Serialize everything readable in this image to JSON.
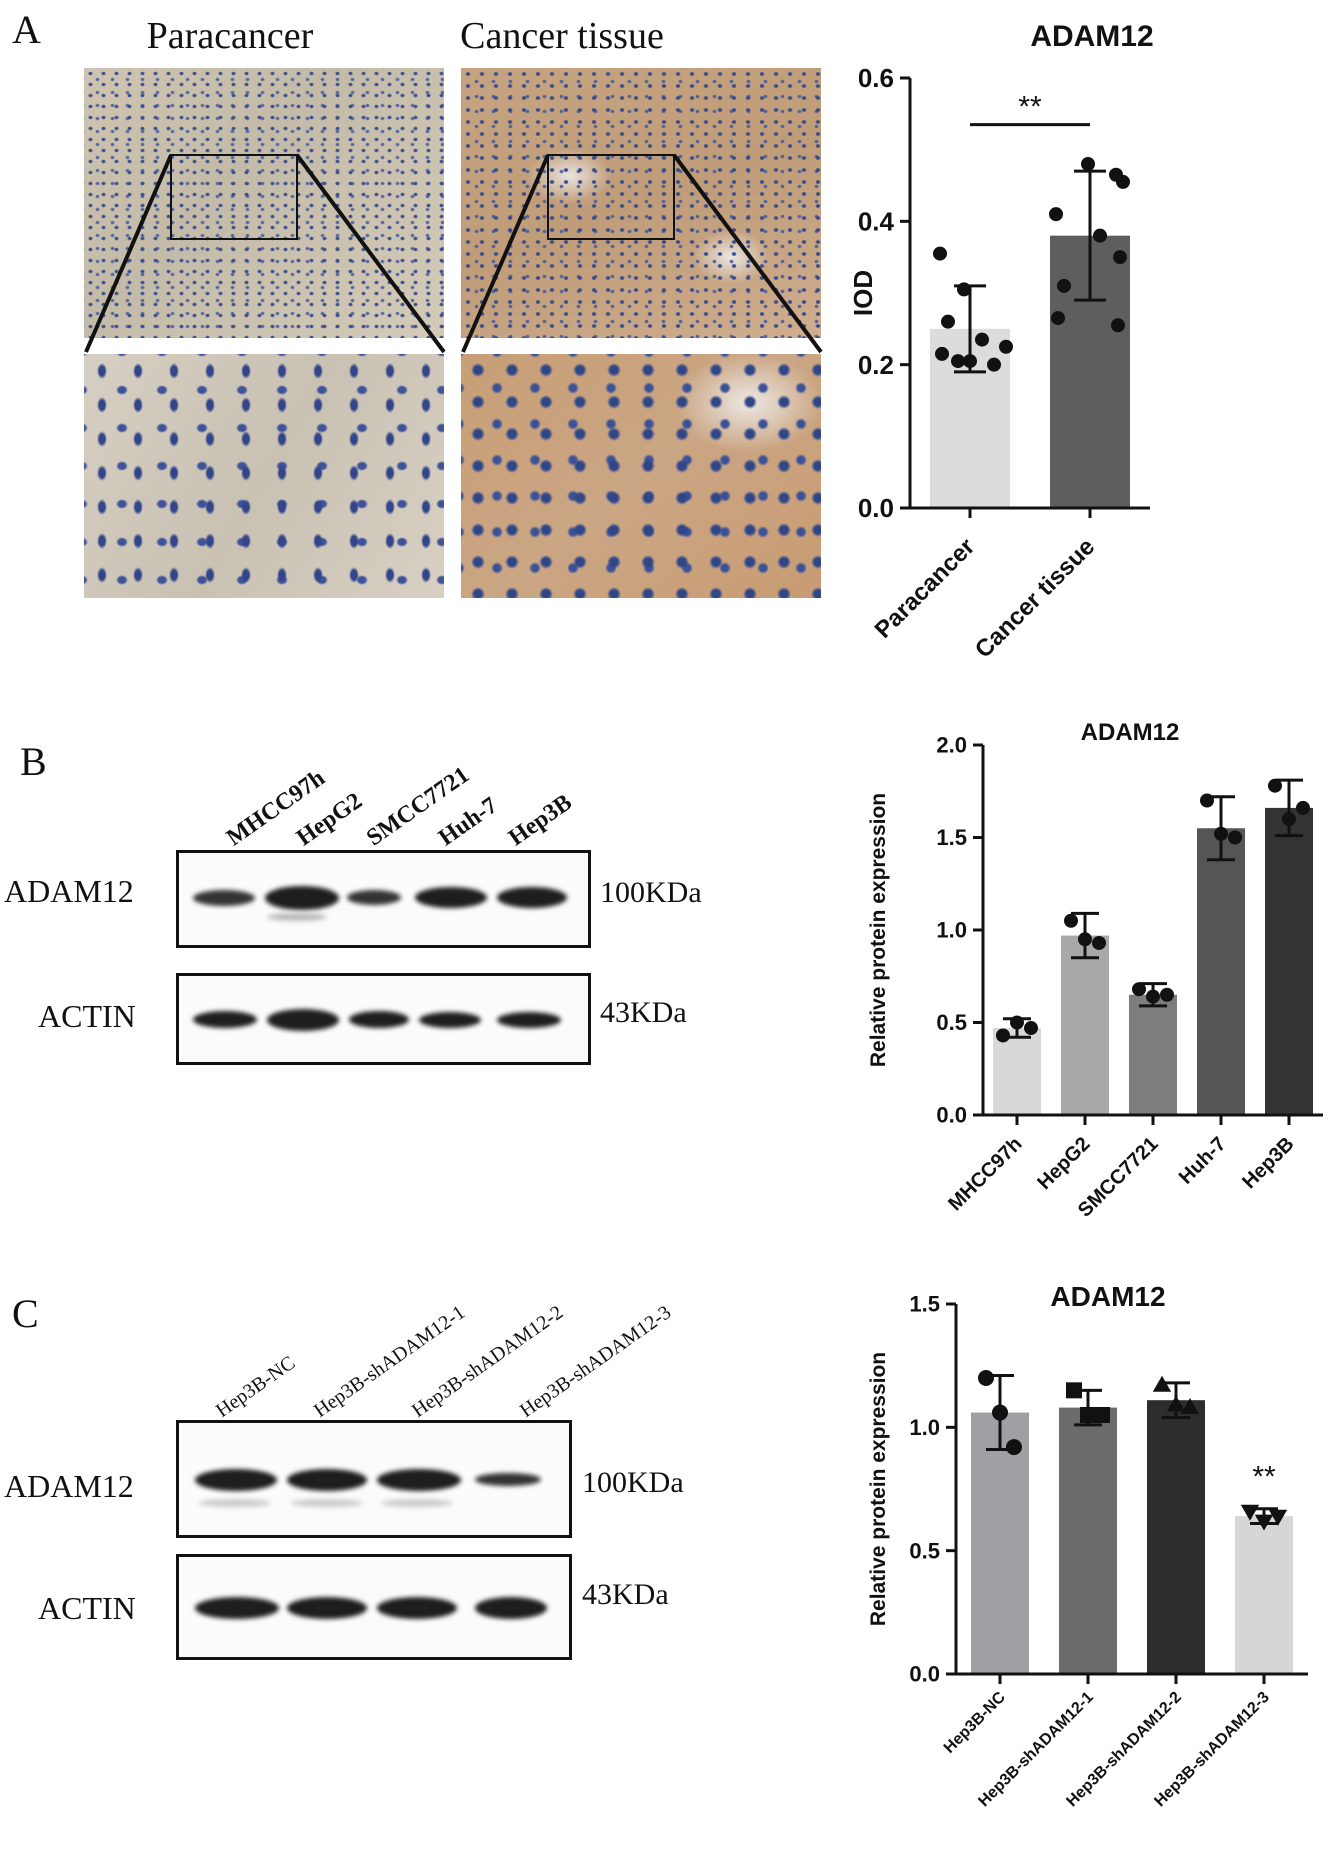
{
  "panel_a": {
    "letter": "A",
    "labels": [
      "Paracancer",
      "Cancer tissue"
    ]
  },
  "panel_b": {
    "letter": "B",
    "lanes": [
      "MHCC97h",
      "HepG2",
      "SMCC7721",
      "Huh-7",
      "Hep3B"
    ],
    "rows": [
      {
        "name": "ADAM12",
        "kda": "100KDa"
      },
      {
        "name": "ACTIN",
        "kda": "43KDa"
      }
    ]
  },
  "panel_c": {
    "letter": "C",
    "lanes": [
      "Hep3B-NC",
      "Hep3B-shADAM12-1",
      "Hep3B-shADAM12-2",
      "Hep3B-shADAM12-3"
    ],
    "rows": [
      {
        "name": "ADAM12",
        "kda": "100KDa"
      },
      {
        "name": "ACTIN",
        "kda": "43KDa"
      }
    ]
  },
  "chart_data": [
    {
      "type": "bar",
      "title": "ADAM12",
      "ylabel": "IOD",
      "categories": [
        "Paracancer",
        "Cancer tissue"
      ],
      "values": [
        0.25,
        0.38
      ],
      "errors": [
        0.06,
        0.09
      ],
      "ylim": [
        0,
        0.6
      ],
      "yticks": [
        "0.0",
        "0.2",
        "0.4",
        "0.6"
      ],
      "colors": [
        "#dcdcdc",
        "#5e5e5e"
      ],
      "points": [
        [
          0.355,
          0.305,
          0.26,
          0.235,
          0.215,
          0.205,
          0.2,
          0.205,
          0.225
        ],
        [
          0.48,
          0.465,
          0.455,
          0.41,
          0.38,
          0.35,
          0.31,
          0.265,
          0.255
        ]
      ],
      "significance": "**"
    },
    {
      "type": "bar",
      "title": "ADAM12",
      "ylabel": "Relative protein expression",
      "categories": [
        "MHCC97h",
        "HepG2",
        "SMCC7721",
        "Huh-7",
        "Hep3B"
      ],
      "values": [
        0.47,
        0.97,
        0.65,
        1.55,
        1.66
      ],
      "errors": [
        0.05,
        0.12,
        0.06,
        0.17,
        0.15
      ],
      "ylim": [
        0,
        2.0
      ],
      "yticks": [
        "0.0",
        "0.5",
        "1.0",
        "1.5",
        "2.0"
      ],
      "colors": [
        "#d8d8d8",
        "#a8a8a8",
        "#7d7d7d",
        "#555555",
        "#333333"
      ],
      "points": [
        [
          0.43,
          0.5,
          0.47
        ],
        [
          1.05,
          0.95,
          0.93
        ],
        [
          0.68,
          0.64,
          0.65
        ],
        [
          1.7,
          1.52,
          1.5
        ],
        [
          1.78,
          1.6,
          1.66
        ]
      ]
    },
    {
      "type": "bar",
      "title": "ADAM12",
      "ylabel": "Relative protein expression",
      "categories": [
        "Hep3B-NC",
        "Hep3B-shADAM12-1",
        "Hep3B-shADAM12-2",
        "Hep3B-shADAM12-3"
      ],
      "values": [
        1.06,
        1.08,
        1.11,
        0.64
      ],
      "errors": [
        0.15,
        0.07,
        0.07,
        0.03
      ],
      "ylim": [
        0,
        1.5
      ],
      "yticks": [
        "0.0",
        "0.5",
        "1.0",
        "1.5"
      ],
      "colors": [
        "#a0a0a4",
        "#6b6b6b",
        "#2d2d2d",
        "#d6d6d6"
      ],
      "markers": [
        "circle",
        "square",
        "triangle-up",
        "triangle-down"
      ],
      "points": [
        [
          1.2,
          1.06,
          0.92
        ],
        [
          1.15,
          1.05,
          1.05
        ],
        [
          1.17,
          1.09,
          1.08
        ],
        [
          0.66,
          0.62,
          0.64
        ]
      ],
      "significance": [
        null,
        null,
        null,
        "**"
      ]
    }
  ]
}
